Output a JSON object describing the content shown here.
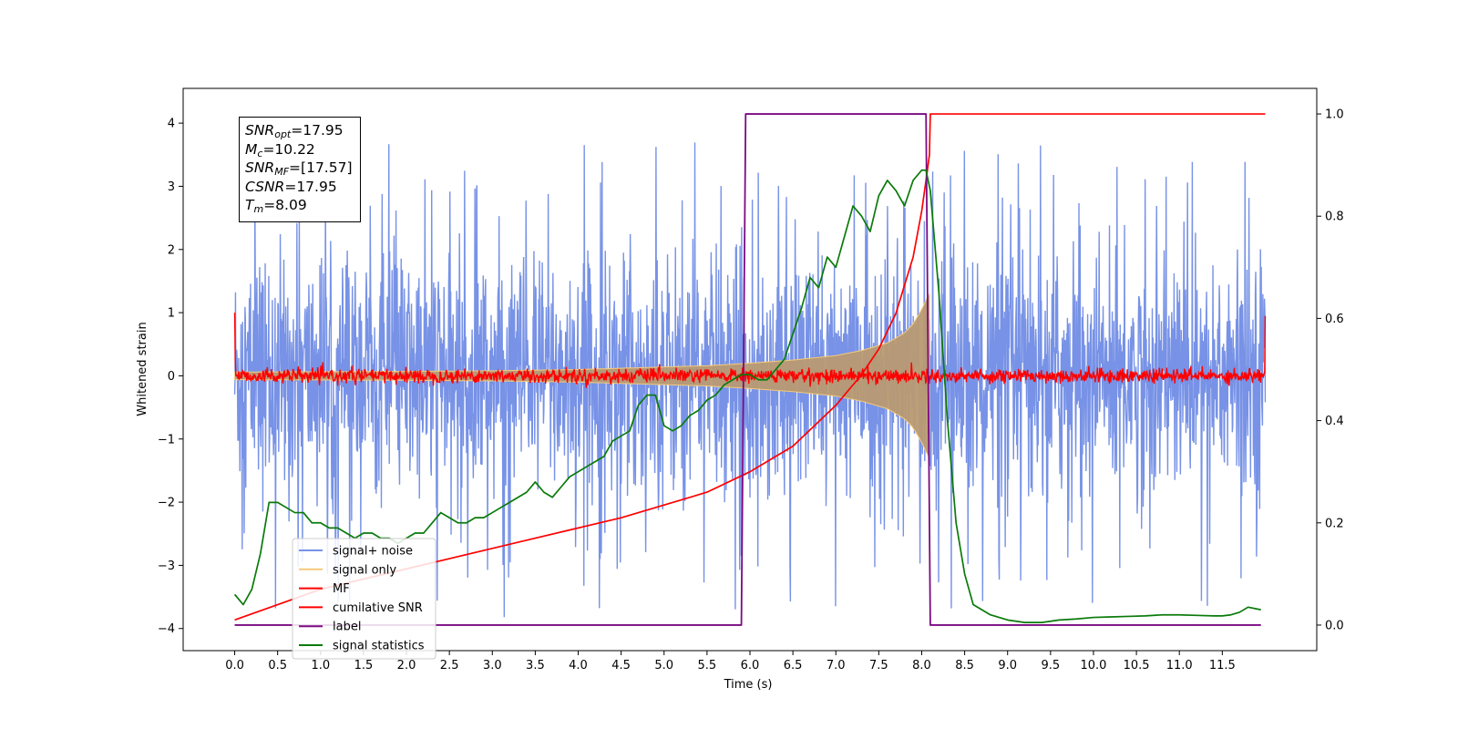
{
  "chart_data": {
    "type": "line",
    "xlabel": "Time (s)",
    "ylabel_left": "Whitened strain",
    "ylabel_right": "",
    "xlim": [
      -0.6,
      12.6
    ],
    "ylim_left": [
      -4.35,
      4.55
    ],
    "ylim_right": [
      -0.05,
      1.05
    ],
    "x_ticks": [
      0.0,
      0.5,
      1.0,
      1.5,
      2.0,
      2.5,
      3.0,
      3.5,
      4.0,
      4.5,
      5.0,
      5.5,
      6.0,
      6.5,
      7.0,
      7.5,
      8.0,
      8.5,
      9.0,
      9.5,
      10.0,
      10.5,
      11.0,
      11.5
    ],
    "x_tick_labels": [
      "0.0",
      "0.5",
      "1.0",
      "1.5",
      "2.0",
      "2.5",
      "3.0",
      "3.5",
      "4.0",
      "4.5",
      "5.0",
      "5.5",
      "6.0",
      "6.5",
      "7.0",
      "7.5",
      "8.0",
      "8.5",
      "9.0",
      "9.5",
      "10.0",
      "10.5",
      "11.0",
      "11.5"
    ],
    "y_ticks_left": [
      4,
      3,
      2,
      1,
      0,
      -1,
      -2,
      -3,
      -4
    ],
    "y_tick_labels_left": [
      "4",
      "3",
      "2",
      "1",
      "0",
      "−1",
      "−2",
      "−3",
      "−4"
    ],
    "y_ticks_right": [
      1.0,
      0.8,
      0.6,
      0.4,
      0.2,
      0.0
    ],
    "y_tick_labels_right": [
      "1.0",
      "0.8",
      "0.6",
      "0.4",
      "0.2",
      "0.0"
    ],
    "grid": false,
    "legend_position": "lower-left",
    "series": [
      {
        "name": "signal+ noise",
        "axis": "left",
        "color": "#7792e6",
        "kind": "noise",
        "x_range": [
          0.0,
          12.0
        ],
        "typical_amplitude": 2.6,
        "peak_amplitude": 3.7,
        "note_minimum": -3.9
      },
      {
        "name": "signal only",
        "axis": "left",
        "color": "#f5c97a",
        "kind": "chirp-envelope",
        "envelope_x": [
          0.0,
          2.0,
          3.0,
          4.0,
          4.5,
          5.0,
          5.5,
          6.0,
          6.5,
          7.0,
          7.3,
          7.6,
          7.8,
          7.9,
          8.0,
          8.05,
          8.09
        ],
        "envelope_amp": [
          0.06,
          0.07,
          0.08,
          0.1,
          0.12,
          0.14,
          0.16,
          0.2,
          0.25,
          0.32,
          0.4,
          0.52,
          0.68,
          0.82,
          1.05,
          1.2,
          1.3
        ]
      },
      {
        "name": "MF",
        "axis": "left",
        "color": "#ff0000",
        "kind": "noise-small",
        "x_range": [
          0.0,
          12.0
        ],
        "typical_amplitude": 0.07,
        "start_value": 1.0,
        "end_value": 0.95
      },
      {
        "name": "cumilative SNR",
        "axis": "right",
        "color": "#ff0000",
        "x": [
          0.0,
          0.5,
          1.0,
          1.5,
          2.0,
          2.5,
          3.0,
          3.5,
          4.0,
          4.5,
          5.0,
          5.5,
          6.0,
          6.5,
          7.0,
          7.3,
          7.5,
          7.7,
          7.9,
          8.0,
          8.05,
          8.09,
          8.1,
          12.0
        ],
        "y": [
          0.01,
          0.04,
          0.07,
          0.09,
          0.11,
          0.13,
          0.15,
          0.17,
          0.19,
          0.21,
          0.235,
          0.26,
          0.3,
          0.35,
          0.43,
          0.49,
          0.54,
          0.61,
          0.72,
          0.81,
          0.87,
          0.92,
          1.0,
          1.0
        ]
      },
      {
        "name": "label",
        "axis": "right",
        "color": "#7b0a82",
        "x": [
          0.0,
          5.9,
          5.95,
          8.05,
          8.1,
          11.95
        ],
        "y": [
          0.0,
          0.0,
          1.0,
          1.0,
          0.0,
          0.0
        ]
      },
      {
        "name": "signal statistics",
        "axis": "right",
        "color": "#0a7a0a",
        "x": [
          0.0,
          0.1,
          0.2,
          0.3,
          0.4,
          0.5,
          0.6,
          0.7,
          0.8,
          0.9,
          1.0,
          1.1,
          1.2,
          1.3,
          1.4,
          1.5,
          1.6,
          1.7,
          1.8,
          1.9,
          2.0,
          2.1,
          2.2,
          2.3,
          2.4,
          2.5,
          2.6,
          2.7,
          2.8,
          2.9,
          3.0,
          3.1,
          3.2,
          3.3,
          3.4,
          3.5,
          3.6,
          3.7,
          3.8,
          3.9,
          4.0,
          4.1,
          4.2,
          4.3,
          4.4,
          4.5,
          4.6,
          4.7,
          4.8,
          4.9,
          5.0,
          5.1,
          5.2,
          5.3,
          5.4,
          5.5,
          5.6,
          5.7,
          5.8,
          5.9,
          6.0,
          6.1,
          6.2,
          6.3,
          6.4,
          6.5,
          6.6,
          6.7,
          6.8,
          6.9,
          7.0,
          7.1,
          7.2,
          7.3,
          7.4,
          7.5,
          7.6,
          7.7,
          7.8,
          7.9,
          8.0,
          8.05,
          8.1,
          8.2,
          8.3,
          8.4,
          8.5,
          8.6,
          8.8,
          9.0,
          9.2,
          9.4,
          9.6,
          9.8,
          10.0,
          10.2,
          10.4,
          10.6,
          10.8,
          11.0,
          11.2,
          11.4,
          11.5,
          11.6,
          11.7,
          11.8,
          11.95
        ],
        "y": [
          0.06,
          0.04,
          0.07,
          0.14,
          0.24,
          0.24,
          0.23,
          0.22,
          0.22,
          0.2,
          0.2,
          0.19,
          0.19,
          0.18,
          0.17,
          0.18,
          0.18,
          0.17,
          0.17,
          0.16,
          0.17,
          0.18,
          0.18,
          0.2,
          0.22,
          0.21,
          0.2,
          0.2,
          0.21,
          0.21,
          0.22,
          0.23,
          0.24,
          0.25,
          0.26,
          0.28,
          0.26,
          0.25,
          0.27,
          0.29,
          0.3,
          0.31,
          0.32,
          0.33,
          0.36,
          0.37,
          0.38,
          0.43,
          0.45,
          0.45,
          0.39,
          0.38,
          0.39,
          0.41,
          0.42,
          0.44,
          0.45,
          0.47,
          0.48,
          0.49,
          0.49,
          0.48,
          0.48,
          0.5,
          0.52,
          0.57,
          0.62,
          0.68,
          0.66,
          0.72,
          0.7,
          0.76,
          0.82,
          0.8,
          0.77,
          0.84,
          0.87,
          0.85,
          0.82,
          0.87,
          0.89,
          0.89,
          0.85,
          0.65,
          0.4,
          0.2,
          0.1,
          0.04,
          0.02,
          0.01,
          0.005,
          0.005,
          0.01,
          0.012,
          0.015,
          0.016,
          0.017,
          0.018,
          0.02,
          0.02,
          0.019,
          0.018,
          0.018,
          0.02,
          0.025,
          0.035,
          0.03
        ]
      }
    ],
    "annotation": {
      "lines": [
        {
          "sym": "SNR",
          "sub": "opt",
          "value": "=17.95"
        },
        {
          "sym": "M",
          "sub": "c",
          "value": "=10.22"
        },
        {
          "sym": "SNR",
          "sub": "MF",
          "value": "=[17.57]"
        },
        {
          "sym": "CSNR",
          "sub": "",
          "value": "=17.95"
        },
        {
          "sym": "T",
          "sub": "m",
          "value": "=8.09"
        }
      ]
    }
  }
}
